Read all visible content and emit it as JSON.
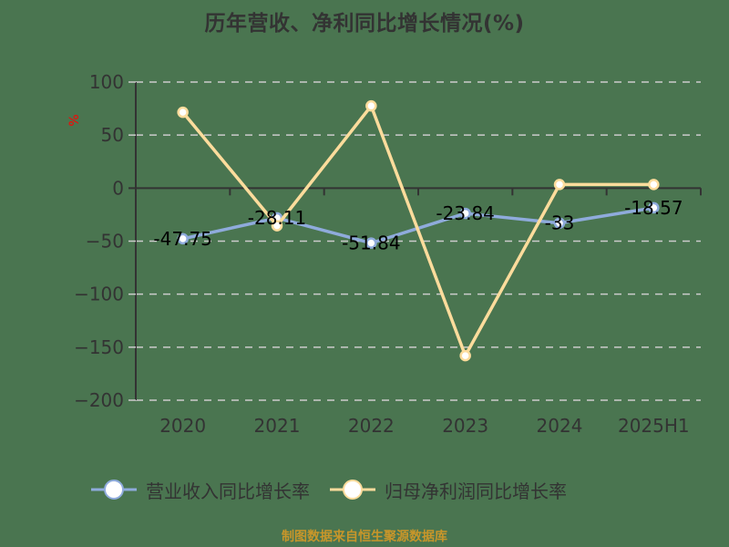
{
  "title": "历年营收、净利同比增长情况(%)",
  "y_unit": "%",
  "source": "制图数据来自恒生聚源数据库",
  "colors": {
    "background": "#4a7550",
    "revenue": "#8fabdc",
    "net_profit": "#fddc9c",
    "axis": "#333333",
    "grid": "#cccccc",
    "unit": "#ff0000",
    "source": "#c8962a"
  },
  "legend": [
    {
      "label": "营业收入同比增长率",
      "color": "#8fabdc"
    },
    {
      "label": "归母净利润同比增长率",
      "color": "#fddc9c"
    }
  ],
  "chart_data": {
    "type": "line",
    "title": "历年营收、净利同比增长情况(%)",
    "xlabel": "",
    "ylabel": "%",
    "categories": [
      "2020",
      "2021",
      "2022",
      "2023",
      "2024",
      "2025H1"
    ],
    "ylim": [
      -200,
      100
    ],
    "yticks": [
      100,
      50,
      0,
      -50,
      -100,
      -150,
      -200
    ],
    "grid": true,
    "legend_position": "bottom",
    "series": [
      {
        "name": "营业收入同比增长率",
        "values": [
          -47.75,
          -28.11,
          -51.84,
          -23.84,
          -33,
          -18.57
        ],
        "labels_shown": true
      },
      {
        "name": "归母净利润同比增长率",
        "values": [
          71.5,
          -35.5,
          77.5,
          -158,
          3.4,
          3.4
        ],
        "labels_shown": false
      }
    ]
  }
}
